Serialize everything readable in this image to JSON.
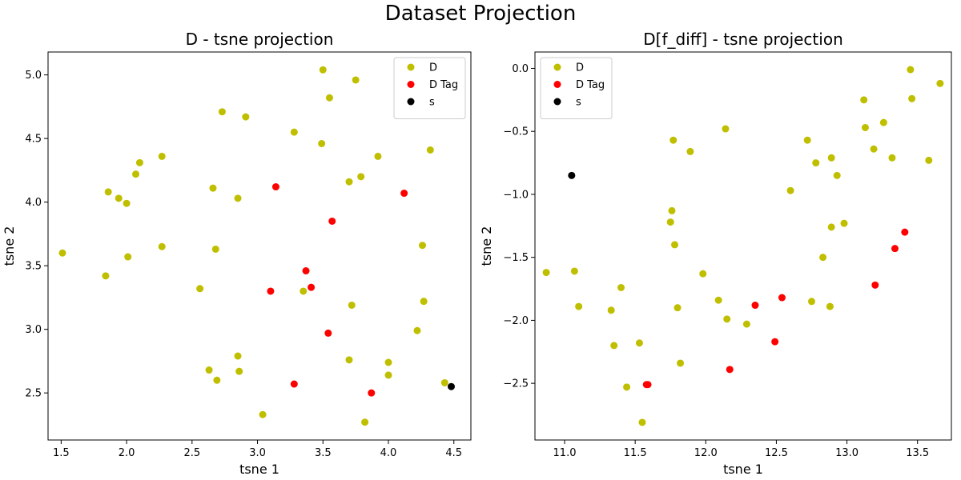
{
  "title": "Dataset Projection",
  "chart_data": [
    {
      "type": "scatter",
      "title": "D - tsne projection",
      "xlabel": "tsne 1",
      "ylabel": "tsne 2",
      "xlim": [
        1.4,
        4.63
      ],
      "ylim": [
        2.13,
        5.18
      ],
      "xticks": [
        "1.5",
        "2.0",
        "2.5",
        "3.0",
        "3.5",
        "4.0",
        "4.5"
      ],
      "yticks": [
        "2.5",
        "3.0",
        "3.5",
        "4.0",
        "4.5",
        "5.0"
      ],
      "legend_position": "top-right",
      "grid": false,
      "series": [
        {
          "name": "D",
          "color": "#bfbf00",
          "points": [
            [
              1.51,
              3.6
            ],
            [
              1.84,
              3.42
            ],
            [
              1.86,
              4.08
            ],
            [
              1.94,
              4.03
            ],
            [
              2.0,
              3.99
            ],
            [
              2.01,
              3.57
            ],
            [
              2.07,
              4.22
            ],
            [
              2.1,
              4.31
            ],
            [
              2.27,
              4.36
            ],
            [
              2.27,
              3.65
            ],
            [
              2.56,
              3.32
            ],
            [
              2.63,
              2.68
            ],
            [
              2.66,
              4.11
            ],
            [
              2.68,
              3.63
            ],
            [
              2.69,
              2.6
            ],
            [
              2.73,
              4.71
            ],
            [
              2.85,
              4.03
            ],
            [
              2.85,
              2.79
            ],
            [
              2.86,
              2.67
            ],
            [
              2.91,
              4.67
            ],
            [
              3.04,
              2.33
            ],
            [
              3.28,
              4.55
            ],
            [
              3.35,
              3.3
            ],
            [
              3.49,
              4.46
            ],
            [
              3.5,
              5.04
            ],
            [
              3.55,
              4.82
            ],
            [
              3.7,
              4.16
            ],
            [
              3.7,
              2.76
            ],
            [
              3.72,
              3.19
            ],
            [
              3.75,
              4.96
            ],
            [
              3.79,
              4.2
            ],
            [
              3.82,
              2.27
            ],
            [
              3.92,
              4.36
            ],
            [
              4.0,
              2.74
            ],
            [
              4.0,
              2.64
            ],
            [
              4.22,
              2.99
            ],
            [
              4.26,
              3.66
            ],
            [
              4.27,
              3.22
            ],
            [
              4.32,
              4.41
            ],
            [
              4.43,
              2.58
            ]
          ]
        },
        {
          "name": "D Tag",
          "color": "#ff0000",
          "points": [
            [
              3.1,
              3.3
            ],
            [
              3.14,
              4.12
            ],
            [
              3.28,
              2.57
            ],
            [
              3.37,
              3.46
            ],
            [
              3.41,
              3.33
            ],
            [
              3.54,
              2.97
            ],
            [
              3.57,
              3.85
            ],
            [
              3.87,
              2.5
            ],
            [
              4.12,
              4.07
            ]
          ]
        },
        {
          "name": "s",
          "color": "#000000",
          "points": [
            [
              4.48,
              2.55
            ]
          ]
        }
      ]
    },
    {
      "type": "scatter",
      "title": "D[f_diff] - tsne projection",
      "xlabel": "tsne 1",
      "ylabel": "tsne 2",
      "xlim": [
        10.79,
        13.74
      ],
      "ylim": [
        -2.95,
        0.13
      ],
      "xticks": [
        "11.0",
        "11.5",
        "12.0",
        "12.5",
        "13.0",
        "13.5"
      ],
      "yticks": [
        "0.0",
        "−0.5",
        "−1.0",
        "−1.5",
        "−2.0",
        "−2.5"
      ],
      "legend_position": "top-left",
      "grid": false,
      "series": [
        {
          "name": "D",
          "color": "#bfbf00",
          "points": [
            [
              10.87,
              -1.62
            ],
            [
              11.07,
              -1.61
            ],
            [
              11.1,
              -1.89
            ],
            [
              11.33,
              -1.92
            ],
            [
              11.35,
              -2.2
            ],
            [
              11.4,
              -1.74
            ],
            [
              11.44,
              -2.53
            ],
            [
              11.53,
              -2.18
            ],
            [
              11.55,
              -2.81
            ],
            [
              11.75,
              -1.22
            ],
            [
              11.76,
              -1.13
            ],
            [
              11.77,
              -0.57
            ],
            [
              11.78,
              -1.4
            ],
            [
              11.8,
              -1.9
            ],
            [
              11.82,
              -2.34
            ],
            [
              11.89,
              -0.66
            ],
            [
              11.98,
              -1.63
            ],
            [
              12.09,
              -1.84
            ],
            [
              12.14,
              -0.48
            ],
            [
              12.15,
              -1.99
            ],
            [
              12.29,
              -2.03
            ],
            [
              12.6,
              -0.97
            ],
            [
              12.72,
              -0.57
            ],
            [
              12.75,
              -1.85
            ],
            [
              12.78,
              -0.75
            ],
            [
              12.83,
              -1.5
            ],
            [
              12.88,
              -1.89
            ],
            [
              12.89,
              -1.26
            ],
            [
              12.89,
              -0.71
            ],
            [
              12.93,
              -0.85
            ],
            [
              12.98,
              -1.23
            ],
            [
              13.12,
              -0.25
            ],
            [
              13.13,
              -0.47
            ],
            [
              13.19,
              -0.64
            ],
            [
              13.26,
              -0.43
            ],
            [
              13.32,
              -0.71
            ],
            [
              13.45,
              -0.01
            ],
            [
              13.46,
              -0.24
            ],
            [
              13.58,
              -0.73
            ],
            [
              13.66,
              -0.12
            ]
          ]
        },
        {
          "name": "D Tag",
          "color": "#ff0000",
          "points": [
            [
              11.58,
              -2.51
            ],
            [
              11.59,
              -2.51
            ],
            [
              12.17,
              -2.39
            ],
            [
              12.35,
              -1.88
            ],
            [
              12.49,
              -2.17
            ],
            [
              12.54,
              -1.82
            ],
            [
              13.2,
              -1.72
            ],
            [
              13.34,
              -1.43
            ],
            [
              13.41,
              -1.3
            ]
          ]
        },
        {
          "name": "s",
          "color": "#000000",
          "points": [
            [
              11.05,
              -0.85
            ]
          ]
        }
      ]
    }
  ]
}
